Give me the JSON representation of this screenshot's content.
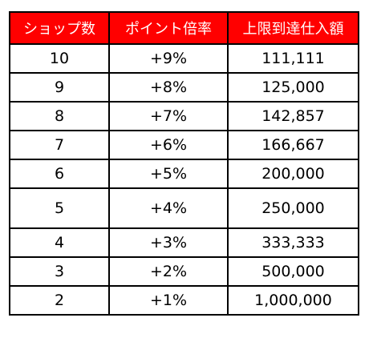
{
  "table": {
    "headers": [
      "ショップ数",
      "ポイント倍率",
      "上限到達仕入額"
    ],
    "rows": [
      [
        "10",
        "+9%",
        "111,111"
      ],
      [
        "9",
        "+8%",
        "125,000"
      ],
      [
        "8",
        "+7%",
        "142,857"
      ],
      [
        "7",
        "+6%",
        "166,667"
      ],
      [
        "6",
        "+5%",
        "200,000"
      ],
      [
        "5",
        "+4%",
        "250,000"
      ],
      [
        "4",
        "+3%",
        "333,333"
      ],
      [
        "3",
        "+2%",
        "500,000"
      ],
      [
        "2",
        "+1%",
        "1,000,000"
      ]
    ]
  },
  "colors": {
    "header_background": "#ff0000",
    "header_text": "#ffffff",
    "border": "#000000"
  }
}
